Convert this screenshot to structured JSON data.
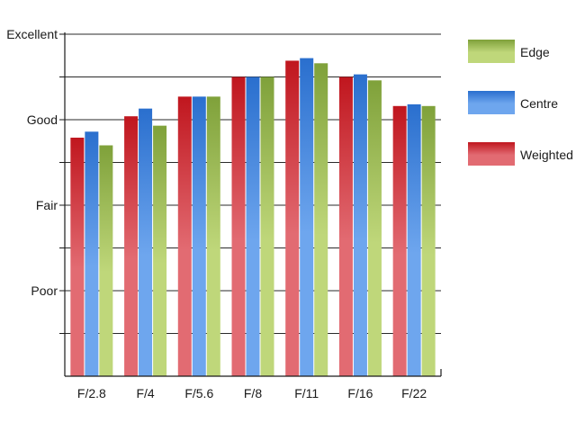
{
  "chart_data": {
    "type": "bar",
    "categories": [
      "F/2.8",
      "F/4",
      "F/5.6",
      "F/8",
      "F/11",
      "F/16",
      "F/22"
    ],
    "series": [
      {
        "name": "Weighted",
        "values": [
          2.79,
          3.04,
          3.27,
          3.5,
          3.69,
          3.5,
          3.16
        ],
        "color": "#c0161e"
      },
      {
        "name": "Centre",
        "values": [
          2.86,
          3.13,
          3.27,
          3.5,
          3.72,
          3.53,
          3.18
        ],
        "color": "#2a6fce"
      },
      {
        "name": "Edge",
        "values": [
          2.7,
          2.93,
          3.27,
          3.5,
          3.66,
          3.46,
          3.16
        ],
        "color": "#7fa13a"
      }
    ],
    "ylim": [
      0,
      4
    ],
    "yticks": [
      {
        "value": 1,
        "label": "Poor"
      },
      {
        "value": 2,
        "label": "Fair"
      },
      {
        "value": 3,
        "label": "Good"
      },
      {
        "value": 4,
        "label": "Excellent"
      }
    ],
    "grid_values": [
      0.5,
      1,
      1.5,
      2,
      2.5,
      3,
      3.5,
      4
    ],
    "legend": [
      "Edge",
      "Centre",
      "Weighted"
    ],
    "legend_position": "right",
    "grid": true,
    "title": "",
    "xlabel": "",
    "ylabel": ""
  }
}
